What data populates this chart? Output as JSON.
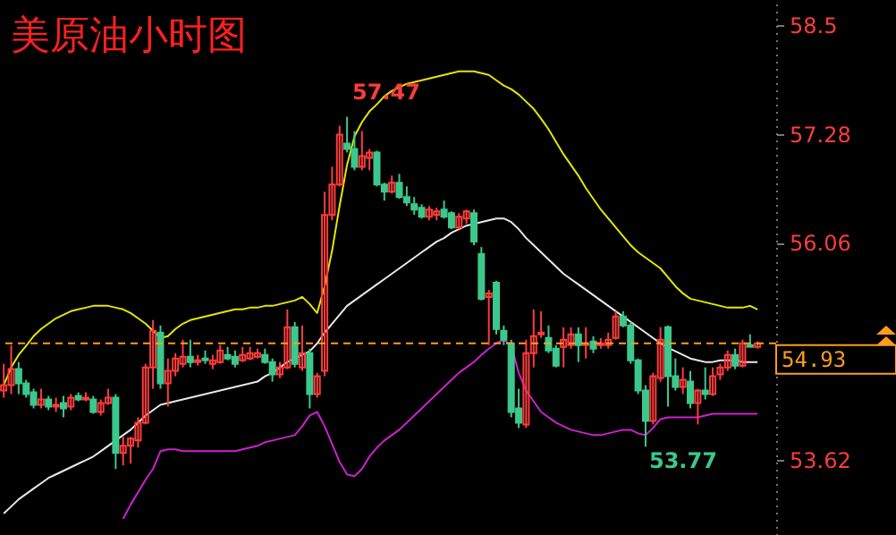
{
  "chart_data": {
    "type": "candlestick",
    "title": "美原油小时图",
    "categories": [
      null,
      null,
      null,
      null,
      null,
      null,
      null,
      null,
      null,
      null,
      null,
      null,
      null,
      null,
      null,
      null,
      null,
      null,
      null,
      null,
      null,
      null,
      null,
      null,
      null,
      null,
      null,
      null,
      null,
      null,
      null,
      null,
      null,
      null,
      null,
      null,
      null,
      null,
      null,
      null,
      null,
      null,
      null,
      null,
      null,
      null,
      null,
      null,
      null,
      null,
      null,
      null,
      null,
      null,
      null,
      null,
      null,
      null,
      null,
      null,
      null,
      null,
      null,
      null,
      null,
      null,
      null,
      null,
      null,
      null,
      null,
      null,
      null,
      null,
      null,
      null,
      null,
      null,
      null,
      null,
      null,
      null,
      null,
      null,
      null,
      null,
      null,
      null,
      null,
      null,
      null,
      null,
      null,
      null,
      null,
      null,
      null,
      null,
      null,
      null,
      null,
      null
    ],
    "ohlc": [
      [
        54.4,
        54.7,
        54.32,
        54.46
      ],
      [
        54.46,
        54.91,
        54.36,
        54.64
      ],
      [
        54.64,
        54.72,
        54.36,
        54.48
      ],
      [
        54.48,
        54.52,
        54.32,
        54.36
      ],
      [
        54.38,
        54.42,
        54.2,
        54.24
      ],
      [
        54.24,
        54.42,
        54.2,
        54.3
      ],
      [
        54.3,
        54.34,
        54.18,
        54.22
      ],
      [
        54.22,
        54.32,
        54.16,
        54.24
      ],
      [
        54.26,
        54.34,
        54.1,
        54.2
      ],
      [
        54.22,
        54.36,
        54.18,
        54.32
      ],
      [
        54.34,
        54.38,
        54.28,
        54.3
      ],
      [
        54.3,
        54.38,
        54.28,
        54.32
      ],
      [
        54.3,
        54.34,
        54.14,
        54.16
      ],
      [
        54.16,
        54.3,
        54.12,
        54.26
      ],
      [
        54.26,
        54.42,
        54.24,
        54.32
      ],
      [
        54.32,
        54.36,
        53.52,
        53.7
      ],
      [
        53.7,
        53.88,
        53.56,
        53.78
      ],
      [
        53.78,
        53.88,
        53.58,
        53.86
      ],
      [
        53.84,
        54.1,
        53.76,
        54.04
      ],
      [
        54.04,
        54.7,
        54.02,
        54.66
      ],
      [
        54.66,
        55.19,
        54.42,
        55.07
      ],
      [
        55.05,
        55.13,
        54.42,
        54.48
      ],
      [
        54.48,
        54.76,
        54.22,
        54.62
      ],
      [
        54.62,
        54.82,
        54.56,
        54.76
      ],
      [
        54.7,
        54.97,
        54.66,
        54.78
      ],
      [
        54.78,
        54.97,
        54.66,
        54.72
      ],
      [
        54.72,
        54.8,
        54.68,
        54.74
      ],
      [
        54.76,
        54.85,
        54.7,
        54.74
      ],
      [
        54.7,
        54.8,
        54.64,
        54.74
      ],
      [
        54.72,
        54.91,
        54.7,
        54.85
      ],
      [
        54.8,
        54.89,
        54.74,
        54.76
      ],
      [
        54.78,
        54.85,
        54.66,
        54.7
      ],
      [
        54.74,
        54.89,
        54.72,
        54.8
      ],
      [
        54.76,
        54.89,
        54.74,
        54.82
      ],
      [
        54.78,
        54.87,
        54.76,
        54.82
      ],
      [
        54.8,
        54.87,
        54.7,
        54.72
      ],
      [
        54.72,
        54.76,
        54.5,
        54.58
      ],
      [
        54.58,
        54.72,
        54.54,
        54.66
      ],
      [
        54.66,
        55.31,
        54.64,
        55.11
      ],
      [
        55.11,
        55.17,
        54.66,
        54.7
      ],
      [
        54.66,
        55.13,
        54.62,
        54.82
      ],
      [
        54.82,
        54.87,
        54.2,
        54.36
      ],
      [
        54.36,
        54.6,
        54.32,
        54.56
      ],
      [
        54.62,
        56.63,
        54.56,
        56.37
      ],
      [
        56.37,
        56.91,
        56.31,
        56.71
      ],
      [
        56.71,
        57.37,
        56.69,
        57.27
      ],
      [
        57.17,
        57.47,
        57.07,
        57.11
      ],
      [
        57.11,
        57.31,
        56.87,
        56.91
      ],
      [
        56.91,
        57.31,
        56.87,
        57.03
      ],
      [
        57.01,
        57.11,
        56.87,
        57.07
      ],
      [
        57.07,
        57.09,
        56.69,
        56.71
      ],
      [
        56.71,
        56.73,
        56.53,
        56.63
      ],
      [
        56.63,
        56.81,
        56.61,
        56.73
      ],
      [
        56.73,
        56.83,
        56.55,
        56.57
      ],
      [
        56.57,
        56.69,
        56.47,
        56.51
      ],
      [
        56.49,
        56.57,
        56.37,
        56.43
      ],
      [
        56.45,
        56.49,
        56.33,
        56.35
      ],
      [
        56.35,
        56.47,
        56.31,
        56.43
      ],
      [
        56.37,
        56.45,
        56.31,
        56.41
      ],
      [
        56.43,
        56.53,
        56.33,
        56.35
      ],
      [
        56.39,
        56.41,
        56.21,
        56.23
      ],
      [
        56.23,
        56.39,
        56.21,
        56.35
      ],
      [
        56.33,
        56.43,
        56.27,
        56.41
      ],
      [
        56.39,
        56.43,
        56.03,
        56.07
      ],
      [
        55.93,
        56.01,
        55.41,
        55.43
      ],
      [
        55.45,
        55.53,
        54.91,
        55.49
      ],
      [
        55.61,
        55.63,
        55.03,
        55.09
      ],
      [
        55.07,
        55.13,
        54.91,
        54.97
      ],
      [
        54.93,
        54.97,
        54.1,
        54.16
      ],
      [
        54.2,
        54.42,
        53.98,
        54.04
      ],
      [
        54.02,
        54.97,
        53.98,
        54.82
      ],
      [
        54.82,
        55.31,
        54.66,
        55.01
      ],
      [
        55.03,
        55.29,
        54.99,
        55.05
      ],
      [
        54.99,
        55.13,
        54.82,
        54.85
      ],
      [
        54.87,
        54.91,
        54.66,
        54.68
      ],
      [
        54.89,
        55.11,
        54.66,
        54.97
      ],
      [
        54.91,
        55.11,
        54.87,
        55.03
      ],
      [
        55.03,
        55.11,
        54.72,
        54.91
      ],
      [
        54.91,
        55.11,
        54.76,
        54.93
      ],
      [
        54.95,
        55.01,
        54.82,
        54.87
      ],
      [
        54.91,
        54.99,
        54.87,
        54.93
      ],
      [
        54.91,
        55.05,
        54.87,
        54.97
      ],
      [
        54.99,
        55.29,
        54.97,
        55.23
      ],
      [
        55.23,
        55.29,
        55.11,
        55.13
      ],
      [
        55.13,
        55.17,
        54.7,
        54.74
      ],
      [
        54.74,
        54.76,
        54.36,
        54.4
      ],
      [
        54.4,
        54.46,
        53.77,
        54.06
      ],
      [
        54.06,
        54.6,
        54.02,
        54.56
      ],
      [
        54.54,
        55.11,
        54.5,
        54.97
      ],
      [
        55.11,
        55.13,
        54.22,
        54.56
      ],
      [
        54.56,
        54.76,
        54.4,
        54.44
      ],
      [
        54.44,
        54.66,
        54.36,
        54.52
      ],
      [
        54.5,
        54.62,
        54.2,
        54.26
      ],
      [
        54.26,
        54.42,
        54.02,
        54.4
      ],
      [
        54.4,
        54.66,
        54.3,
        54.36
      ],
      [
        54.36,
        54.66,
        54.34,
        54.56
      ],
      [
        54.58,
        54.7,
        54.52,
        54.66
      ],
      [
        54.66,
        54.85,
        54.62,
        54.8
      ],
      [
        54.8,
        54.87,
        54.64,
        54.68
      ],
      [
        54.68,
        54.97,
        54.66,
        54.93
      ],
      [
        54.91,
        55.03,
        54.89,
        54.89
      ],
      [
        54.89,
        54.95,
        54.87,
        54.93
      ]
    ],
    "colors": [
      "#ff3c3c",
      "#ff3c3c",
      "#3cc88c",
      "#3cc88c",
      "#3cc88c",
      "#ff3c3c",
      "#3cc88c",
      "#ff3c3c",
      "#3cc88c",
      "#ff3c3c",
      "#3cc88c",
      "#ff3c3c",
      "#3cc88c",
      "#ff3c3c",
      "#ff3c3c",
      "#3cc88c",
      "#ff3c3c",
      "#ff3c3c",
      "#ff3c3c",
      "#ff3c3c",
      "#ff3c3c",
      "#3cc88c",
      "#ff3c3c",
      "#ff3c3c",
      "#ff3c3c",
      "#3cc88c",
      "#ff3c3c",
      "#3cc88c",
      "#ff3c3c",
      "#ff3c3c",
      "#3cc88c",
      "#3cc88c",
      "#ff3c3c",
      "#ff3c3c",
      "#ff3c3c",
      "#3cc88c",
      "#3cc88c",
      "#ff3c3c",
      "#ff3c3c",
      "#3cc88c",
      "#ff3c3c",
      "#3cc88c",
      "#ff3c3c",
      "#ff3c3c",
      "#ff3c3c",
      "#ff3c3c",
      "#3cc88c",
      "#3cc88c",
      "#ff3c3c",
      "#ff3c3c",
      "#3cc88c",
      "#3cc88c",
      "#ff3c3c",
      "#3cc88c",
      "#3cc88c",
      "#3cc88c",
      "#3cc88c",
      "#ff3c3c",
      "#ff3c3c",
      "#3cc88c",
      "#3cc88c",
      "#ff3c3c",
      "#ff3c3c",
      "#3cc88c",
      "#3cc88c",
      "#ff3c3c",
      "#3cc88c",
      "#3cc88c",
      "#3cc88c",
      "#3cc88c",
      "#ff3c3c",
      "#ff3c3c",
      "#ff3c3c",
      "#3cc88c",
      "#3cc88c",
      "#ff3c3c",
      "#ff3c3c",
      "#3cc88c",
      "#ff3c3c",
      "#3cc88c",
      "#ff3c3c",
      "#ff3c3c",
      "#ff3c3c",
      "#3cc88c",
      "#3cc88c",
      "#3cc88c",
      "#3cc88c",
      "#ff3c3c",
      "#ff3c3c",
      "#3cc88c",
      "#3cc88c",
      "#ff3c3c",
      "#3cc88c",
      "#ff3c3c",
      "#3cc88c",
      "#ff3c3c",
      "#ff3c3c",
      "#ff3c3c",
      "#3cc88c",
      "#ff3c3c",
      "#3cc88c",
      "#ff3c3c"
    ],
    "series": [
      {
        "type": "line",
        "color": "#e6e600",
        "values": [
          54.46,
          54.66,
          54.8,
          54.9,
          55.01,
          55.09,
          55.15,
          55.21,
          55.25,
          55.29,
          55.31,
          55.33,
          55.35,
          55.35,
          55.35,
          55.33,
          55.31,
          55.27,
          55.21,
          55.15,
          55.07,
          54.99,
          55.01,
          55.09,
          55.15,
          55.19,
          55.21,
          55.23,
          55.25,
          55.27,
          55.29,
          55.31,
          55.31,
          55.33,
          55.33,
          55.35,
          55.35,
          55.37,
          55.39,
          55.41,
          55.45,
          55.37,
          55.27,
          55.57,
          55.97,
          56.47,
          56.93,
          57.25,
          57.41,
          57.53,
          57.61,
          57.7,
          57.76,
          57.8,
          57.84,
          57.86,
          57.88,
          57.9,
          57.92,
          57.94,
          57.96,
          57.98,
          57.98,
          57.98,
          57.96,
          57.94,
          57.88,
          57.82,
          57.78,
          57.72,
          57.64,
          57.56,
          57.45,
          57.33,
          57.19,
          57.05,
          56.93,
          56.81,
          56.67,
          56.55,
          56.43,
          56.33,
          56.23,
          56.13,
          56.03,
          55.95,
          55.89,
          55.83,
          55.77,
          55.67,
          55.57,
          55.49,
          55.43,
          55.41,
          55.39,
          55.37,
          55.35,
          55.33,
          55.33,
          55.33,
          55.35,
          55.31
        ]
      },
      {
        "type": "line",
        "color": "#e8e8e8",
        "values": [
          53.02,
          53.1,
          53.18,
          53.24,
          53.3,
          53.36,
          53.42,
          53.46,
          53.5,
          53.54,
          53.58,
          53.62,
          53.66,
          53.72,
          53.78,
          53.84,
          53.9,
          53.96,
          54.04,
          54.12,
          54.18,
          54.24,
          54.26,
          54.28,
          54.3,
          54.32,
          54.34,
          54.36,
          54.38,
          54.4,
          54.42,
          54.44,
          54.46,
          54.48,
          54.5,
          54.56,
          54.6,
          54.66,
          54.72,
          54.76,
          54.8,
          54.84,
          54.93,
          55.05,
          55.15,
          55.25,
          55.35,
          55.41,
          55.47,
          55.53,
          55.59,
          55.65,
          55.71,
          55.77,
          55.83,
          55.89,
          55.95,
          56.01,
          56.07,
          56.11,
          56.17,
          56.21,
          56.25,
          56.27,
          56.29,
          56.31,
          56.33,
          56.33,
          56.29,
          56.21,
          56.11,
          56.03,
          55.95,
          55.87,
          55.79,
          55.71,
          55.65,
          55.59,
          55.53,
          55.47,
          55.41,
          55.35,
          55.29,
          55.23,
          55.17,
          55.11,
          55.05,
          54.99,
          54.93,
          54.88,
          54.84,
          54.8,
          54.76,
          54.74,
          54.72,
          54.72,
          54.74,
          54.74,
          54.74,
          54.72,
          54.72,
          54.72
        ]
      },
      {
        "type": "line",
        "color": "#d020d0",
        "values": [
          null,
          null,
          null,
          null,
          null,
          null,
          null,
          null,
          null,
          null,
          null,
          null,
          null,
          null,
          null,
          null,
          52.96,
          53.12,
          53.26,
          53.4,
          53.52,
          53.72,
          53.74,
          53.74,
          53.72,
          53.72,
          53.72,
          53.72,
          53.72,
          53.72,
          53.72,
          53.72,
          53.74,
          53.76,
          53.78,
          53.82,
          53.84,
          53.86,
          53.88,
          53.9,
          54.0,
          54.12,
          54.16,
          54.0,
          53.8,
          53.6,
          53.46,
          53.44,
          53.52,
          53.66,
          53.76,
          53.84,
          53.9,
          53.96,
          54.04,
          54.12,
          54.2,
          54.28,
          54.36,
          54.44,
          54.52,
          54.6,
          54.66,
          54.72,
          54.8,
          54.87,
          54.93,
          54.97,
          54.91,
          54.6,
          54.4,
          54.28,
          54.16,
          54.1,
          54.04,
          54.0,
          53.96,
          53.94,
          53.92,
          53.9,
          53.9,
          53.92,
          53.94,
          53.96,
          53.96,
          53.92,
          53.9,
          53.98,
          54.08,
          54.1,
          54.1,
          54.1,
          54.1,
          54.1,
          54.12,
          54.14,
          54.14,
          54.14,
          54.14,
          54.14,
          54.14,
          54.14
        ]
      }
    ],
    "ylim": [
      52.78,
      58.78
    ],
    "yticks": [
      53.62,
      {
        "value": 54.84,
        "label": null
      },
      56.06,
      57.28,
      58.5
    ],
    "ref_lines": [
      {
        "axis": "y",
        "value": 54.93,
        "label": "54.93",
        "color": "#ff9c1e",
        "line_style": "dashed"
      }
    ],
    "annotations": [
      "57.47",
      "53.77"
    ]
  }
}
